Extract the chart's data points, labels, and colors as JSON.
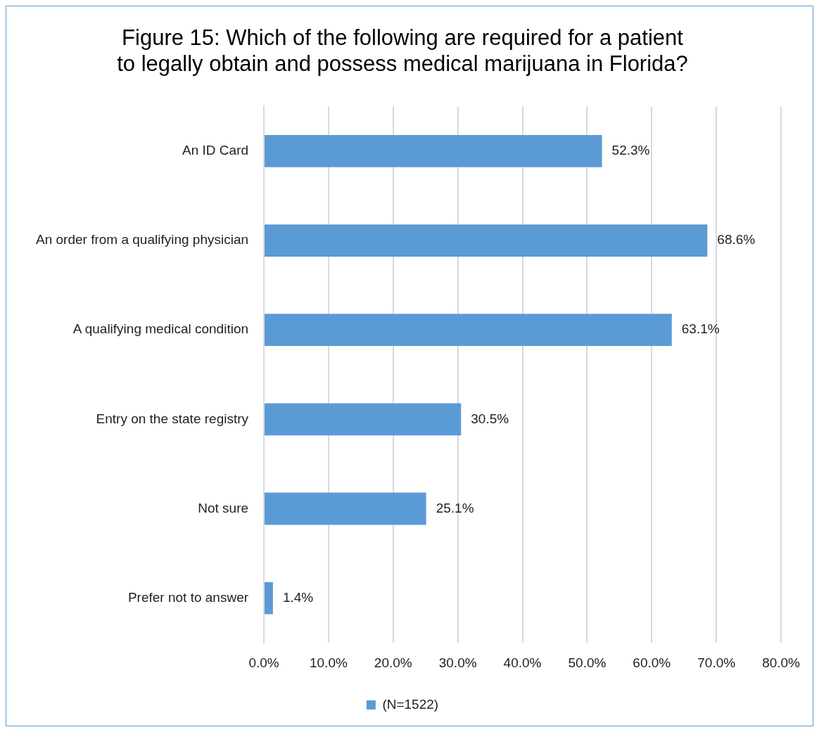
{
  "chart_data": {
    "type": "bar",
    "orientation": "horizontal",
    "title": "Figure 15: Which of the following are required for a patient to legally obtain and possess medical marijuana in Florida?",
    "categories": [
      "An ID Card",
      "An order from a qualifying physician",
      "A qualifying medical condition",
      "Entry on the state registry",
      "Not sure",
      "Prefer not to answer"
    ],
    "series": [
      {
        "name": "(N=1522)",
        "color": "#5b9bd5",
        "values": [
          52.3,
          68.6,
          63.1,
          30.5,
          25.1,
          1.4
        ],
        "value_labels": [
          "52.3%",
          "68.6%",
          "63.1%",
          "30.5%",
          "25.1%",
          "1.4%"
        ]
      }
    ],
    "xlim": [
      0,
      80
    ],
    "xticks": [
      {
        "value": 0,
        "label": "0.0%"
      },
      {
        "value": 10,
        "label": "10.0%"
      },
      {
        "value": 20,
        "label": "20.0%"
      },
      {
        "value": 30,
        "label": "30.0%"
      },
      {
        "value": 40,
        "label": "40.0%"
      },
      {
        "value": 50,
        "label": "50.0%"
      },
      {
        "value": 60,
        "label": "60.0%"
      },
      {
        "value": 70,
        "label": "70.0%"
      },
      {
        "value": 80,
        "label": "80.0%"
      }
    ],
    "grid": "x",
    "legend": "bottom"
  }
}
